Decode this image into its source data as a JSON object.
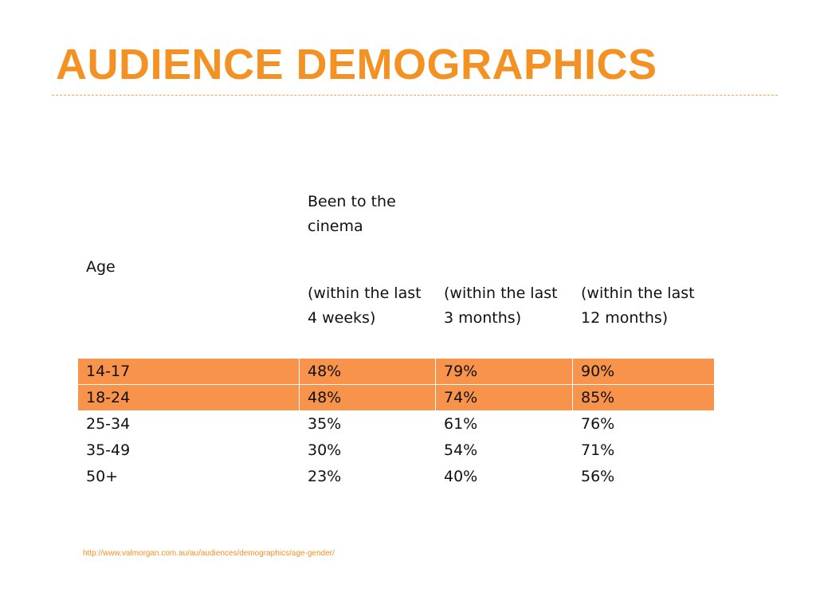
{
  "slide": {
    "title": "AUDIENCE DEMOGRAPHICS",
    "source_url": "http://www.valmorgan.com.au/au/audiences/demographics/age-gender/"
  },
  "table": {
    "header_age": "Age",
    "header_been_line1": "Been to the",
    "header_been_line2": "cinema",
    "subheaders": [
      {
        "line1": "(within the last",
        "line2": "4 weeks)"
      },
      {
        "line1": "(within the last",
        "line2": "3 months)"
      },
      {
        "line1": "(within the last",
        "line2": "12 months)"
      }
    ],
    "rows": [
      {
        "age": "14-17",
        "w4": "48%",
        "m3": "79%",
        "m12": "90%",
        "highlighted": true
      },
      {
        "age": "18-24",
        "w4": "48%",
        "m3": "74%",
        "m12": "85%",
        "highlighted": true
      },
      {
        "age": "25-34",
        "w4": "35%",
        "m3": "61%",
        "m12": "76%",
        "highlighted": false
      },
      {
        "age": "35-49",
        "w4": "30%",
        "m3": "54%",
        "m12": "71%",
        "highlighted": false
      },
      {
        "age": "50+",
        "w4": "23%",
        "m3": "40%",
        "m12": "56%",
        "highlighted": false
      }
    ]
  },
  "colors": {
    "accent": "#f39122",
    "highlight_row": "#f7934a",
    "text": "#111111"
  }
}
